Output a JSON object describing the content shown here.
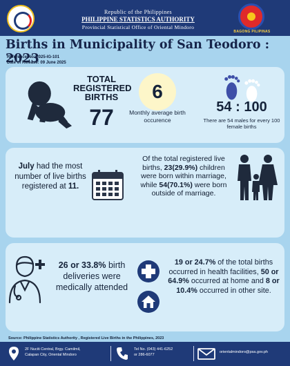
{
  "header": {
    "line1": "Republic of the Philippines",
    "line2": "PHILIPPINE STATISTICS AUTHORITY",
    "line3": "Provincial Statistical Office of Oriental Mindoro",
    "right_logo_text": "BAGONG PILIPINAS"
  },
  "title": "Births in Municipality of San Teodoro : 2023",
  "reference": "Reference No: 2025-IG-101",
  "release_date": "Date of Release: 09 June 2025",
  "stats": {
    "total_label": "TOTAL REGISTERED BIRTHS",
    "total_value": "77",
    "monthly_value": "6",
    "monthly_label": "Monthly average birth occurence",
    "ratio_value": "54 : 100",
    "ratio_note": "There are 54 males for every 100 female births"
  },
  "july": {
    "month": "July",
    "text_a": " had the most number of live births registered at ",
    "count": "11."
  },
  "marriage": {
    "intro": "Of the total registered live births, ",
    "within": "23(29.9%)",
    "mid": " children were born within marriage, while ",
    "outside": "54(70.1%)",
    "end": " were born outside of marriage."
  },
  "medical": {
    "count": "26 or 33.8%",
    "text": " birth deliveries were medically attended"
  },
  "facilities": {
    "hf": "19 or 24.7%",
    "t1": " of the total births occurred in health facilities, ",
    "home": "50 or 64.9%",
    "t2": " occurred at home and ",
    "other": "8 or 10.4%",
    "t3": " occurred in other site."
  },
  "source": "Source: Philippine Statistics Authority , Registered Live Births in the Philippines, 2023",
  "footer": {
    "address_1": "2F Nuciti Central, Brgy. Camilmil,",
    "address_2": "Calapan City, Oriental Mindoro",
    "tel_1": "Tel No. (043) 441-6252",
    "tel_2": "or 286-6077",
    "email": "orientalmindoro@psa.gov.ph"
  },
  "colors": {
    "background": "#a8d4ee",
    "panel": "#d7edf9",
    "navy": "#1f3a78",
    "text": "#15233a"
  }
}
